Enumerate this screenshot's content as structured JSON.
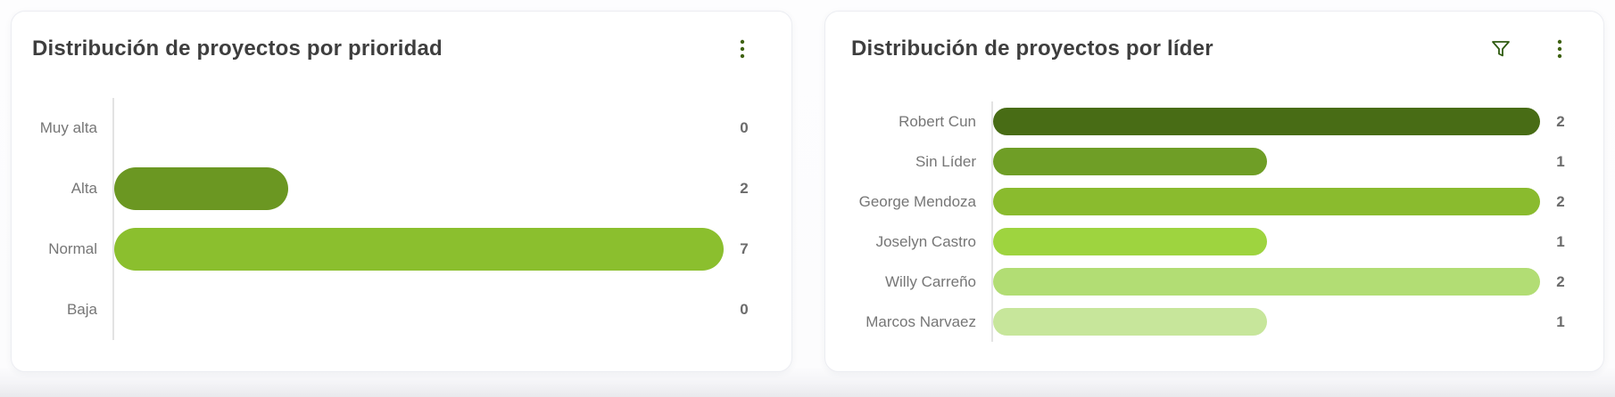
{
  "colors": {
    "title_text": "#3e3e3e",
    "category_label": "#767676",
    "value_label": "#6b6b6b",
    "axis_line": "#e3e3e3",
    "icon_green": "#3f6212",
    "card_background": "#ffffff",
    "page_background": "#fcfcfd"
  },
  "cards": [
    {
      "title": "Distribución de proyectos por prioridad",
      "icons": [
        {
          "name": "kebab-menu-icon"
        }
      ],
      "chart_data": {
        "type": "bar",
        "orientation": "horizontal",
        "title": "Distribución de proyectos por prioridad",
        "categories": [
          "Muy alta",
          "Alta",
          "Normal",
          "Baja"
        ],
        "values": [
          0,
          2,
          7,
          0
        ],
        "bar_colors": [
          "#6b9722",
          "#6b9722",
          "#8bbf2e",
          "#8bbf2e"
        ],
        "xlim": [
          0,
          7
        ],
        "grid": false,
        "legend": false,
        "value_labels_position": "right"
      }
    },
    {
      "title": "Distribución de proyectos por líder",
      "icons": [
        {
          "name": "filter-icon"
        },
        {
          "name": "kebab-menu-icon"
        }
      ],
      "chart_data": {
        "type": "bar",
        "orientation": "horizontal",
        "title": "Distribución de proyectos por líder",
        "categories": [
          "Robert Cun",
          "Sin Líder",
          "George Mendoza",
          "Joselyn Castro",
          "Willy Carreño",
          "Marcos Narvaez"
        ],
        "values": [
          2,
          1,
          2,
          1,
          2,
          1
        ],
        "bar_colors": [
          "#486c15",
          "#6f9e26",
          "#8abb2e",
          "#9ed43f",
          "#b2dd74",
          "#c7e69b"
        ],
        "xlim": [
          0,
          2
        ],
        "grid": false,
        "legend": false,
        "value_labels_position": "right"
      }
    }
  ]
}
